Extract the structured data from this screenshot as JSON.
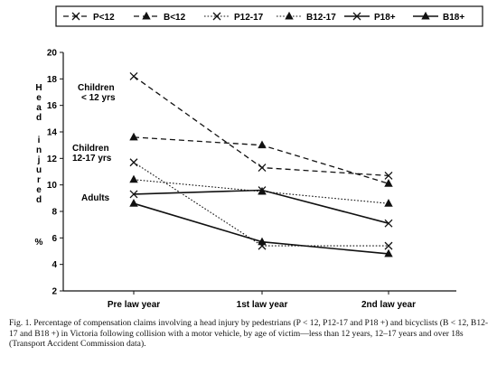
{
  "chart_data": {
    "type": "line",
    "title": "",
    "xlabel": "",
    "ylabel": "Head injured %",
    "ylabel_lines": [
      "H",
      "e",
      "a",
      "d",
      "",
      "i",
      "n",
      "j",
      "u",
      "r",
      "e",
      "d",
      "",
      "%"
    ],
    "ylim": [
      2,
      20
    ],
    "yticks": [
      2,
      4,
      6,
      8,
      10,
      12,
      14,
      16,
      18,
      20
    ],
    "categories": [
      "Pre law year",
      "1st law year",
      "2nd law year"
    ],
    "grid": false,
    "legend_position": "top",
    "series": [
      {
        "name": "P<12",
        "values": [
          18.2,
          11.3,
          10.7
        ],
        "marker": "x",
        "line": "dashed"
      },
      {
        "name": "B<12",
        "values": [
          13.6,
          13.0,
          10.1
        ],
        "marker": "triangle",
        "line": "dashed"
      },
      {
        "name": "P12-17",
        "values": [
          11.7,
          5.4,
          5.4
        ],
        "marker": "x",
        "line": "dotted"
      },
      {
        "name": "B12-17",
        "values": [
          10.4,
          9.5,
          8.6
        ],
        "marker": "triangle",
        "line": "dotted"
      },
      {
        "name": "P18+",
        "values": [
          9.3,
          9.6,
          7.1
        ],
        "marker": "x",
        "line": "solid"
      },
      {
        "name": "B18+",
        "values": [
          8.6,
          5.7,
          4.8
        ],
        "marker": "triangle",
        "line": "solid"
      }
    ],
    "annotations": [
      {
        "lines": [
          "Children",
          "< 12 yrs"
        ]
      },
      {
        "lines": [
          "Children",
          "12-17 yrs"
        ]
      },
      {
        "lines": [
          "Adults"
        ]
      }
    ]
  },
  "caption": "Fig. 1. Percentage of compensation claims involving a head injury by pedestrians (P < 12, P12-17 and P18 +) and bicyclists (B < 12, B12-17 and B18 +) in Victoria following collision with a motor vehicle, by age of victim—less than 12 years, 12–17 years and over 18s (Transport Accident Commission data)."
}
